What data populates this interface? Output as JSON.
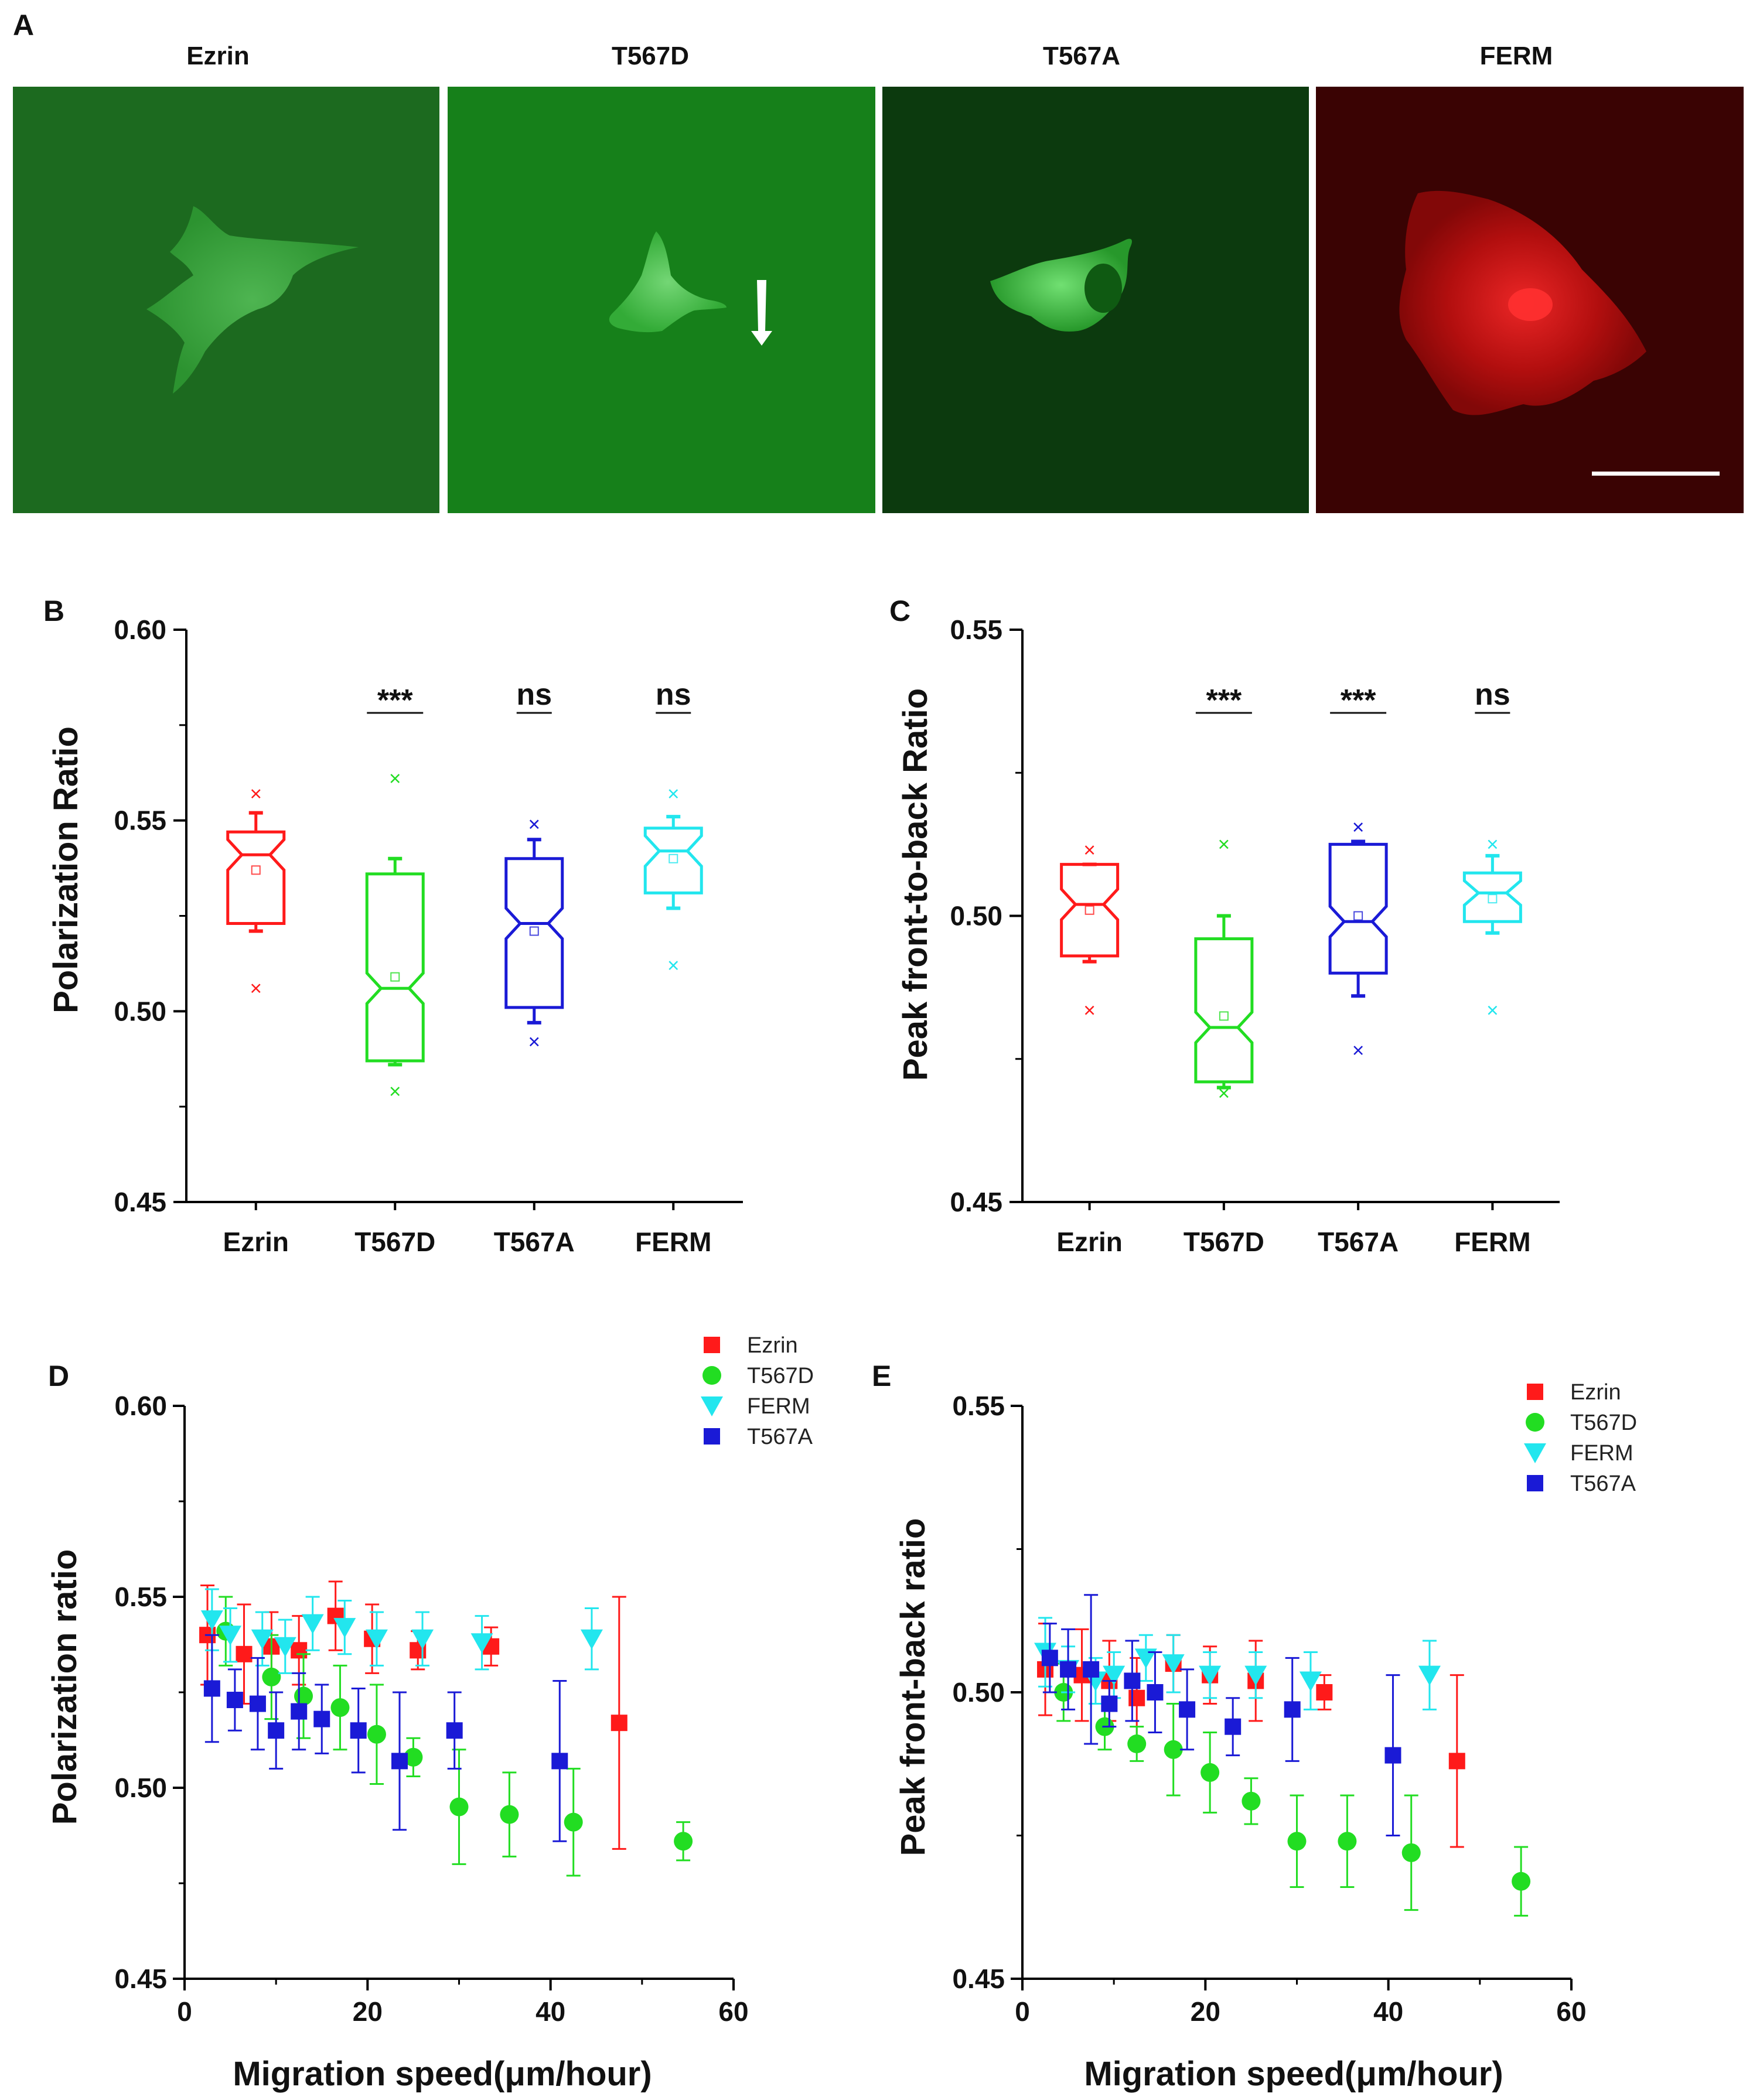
{
  "panel_a": {
    "letter": "A",
    "images": [
      {
        "title": "Ezrin",
        "tint": "#1c6a1f"
      },
      {
        "title": "T567D",
        "tint": "#16801a"
      },
      {
        "title": "T567A",
        "tint": "#0c3a0e"
      },
      {
        "title": "FERM",
        "tint": "#3a0303"
      }
    ]
  },
  "colors": {
    "Ezrin": "#ff1a1a",
    "T567D": "#22dd22",
    "T567A": "#1a1ad6",
    "FERM": "#22e6ee"
  },
  "chart_data": [
    {
      "panel": "B",
      "type": "box",
      "ylabel": "Polarization Ratio",
      "ylim": [
        0.45,
        0.6
      ],
      "yticks": [
        0.45,
        0.5,
        0.55,
        0.6
      ],
      "ytick_labels": [
        "0.45",
        "0.50",
        "0.55",
        "0.60"
      ],
      "categories": [
        "Ezrin",
        "T567D",
        "T567A",
        "FERM"
      ],
      "significance": [
        "",
        "***",
        "ns",
        "ns"
      ],
      "boxes": [
        {
          "q1": 0.523,
          "median": 0.541,
          "q3": 0.547,
          "whisker_low": 0.521,
          "whisker_high": 0.552,
          "mean": 0.537,
          "outliers": [
            0.557,
            0.506
          ]
        },
        {
          "q1": 0.487,
          "median": 0.506,
          "q3": 0.536,
          "whisker_low": 0.486,
          "whisker_high": 0.54,
          "mean": 0.509,
          "outliers": [
            0.561,
            0.479
          ]
        },
        {
          "q1": 0.501,
          "median": 0.523,
          "q3": 0.54,
          "whisker_low": 0.497,
          "whisker_high": 0.545,
          "mean": 0.521,
          "outliers": [
            0.549,
            0.492
          ]
        },
        {
          "q1": 0.531,
          "median": 0.542,
          "q3": 0.548,
          "whisker_low": 0.527,
          "whisker_high": 0.551,
          "mean": 0.54,
          "outliers": [
            0.557,
            0.512
          ]
        }
      ]
    },
    {
      "panel": "C",
      "type": "box",
      "ylabel": "Peak front-to-back Ratio",
      "ylim": [
        0.45,
        0.55
      ],
      "yticks": [
        0.45,
        0.5,
        0.55
      ],
      "ytick_labels": [
        "0.45",
        "0.50",
        "0.55"
      ],
      "categories": [
        "Ezrin",
        "T567D",
        "T567A",
        "FERM"
      ],
      "significance": [
        "",
        "***",
        "***",
        "ns"
      ],
      "boxes": [
        {
          "q1": 0.493,
          "median": 0.502,
          "q3": 0.509,
          "whisker_low": 0.492,
          "whisker_high": 0.509,
          "mean": 0.501,
          "outliers": [
            0.5115,
            0.4835
          ]
        },
        {
          "q1": 0.471,
          "median": 0.4805,
          "q3": 0.496,
          "whisker_low": 0.47,
          "whisker_high": 0.5,
          "mean": 0.4825,
          "outliers": [
            0.5125,
            0.469
          ]
        },
        {
          "q1": 0.49,
          "median": 0.499,
          "q3": 0.5125,
          "whisker_low": 0.486,
          "whisker_high": 0.513,
          "mean": 0.5,
          "outliers": [
            0.5155,
            0.4765
          ]
        },
        {
          "q1": 0.499,
          "median": 0.504,
          "q3": 0.5075,
          "whisker_low": 0.497,
          "whisker_high": 0.5105,
          "mean": 0.503,
          "outliers": [
            0.5125,
            0.4835
          ]
        }
      ]
    },
    {
      "panel": "D",
      "type": "scatter",
      "xlabel": "Migration speed(μm/hour)",
      "ylabel": "Polarization ratio",
      "xlim": [
        0,
        60
      ],
      "ylim": [
        0.45,
        0.6
      ],
      "xticks": [
        0,
        20,
        40,
        60
      ],
      "xtick_labels": [
        "0",
        "20",
        "40",
        "60"
      ],
      "yticks": [
        0.45,
        0.5,
        0.55,
        0.6
      ],
      "ytick_labels": [
        "0.45",
        "0.50",
        "0.55",
        "0.60"
      ],
      "legend": [
        "Ezrin",
        "T567D",
        "FERM",
        "T567A"
      ],
      "series": [
        {
          "name": "Ezrin",
          "marker": "square",
          "points": [
            [
              2.5,
              0.54,
              0.013
            ],
            [
              6.5,
              0.535,
              0.013
            ],
            [
              9.5,
              0.537,
              0.009
            ],
            [
              12.5,
              0.536,
              0.009
            ],
            [
              16.5,
              0.545,
              0.009
            ],
            [
              20.5,
              0.539,
              0.009
            ],
            [
              25.5,
              0.536,
              0.005
            ],
            [
              33.5,
              0.537,
              0.005
            ],
            [
              47.5,
              0.517,
              0.033
            ]
          ]
        },
        {
          "name": "T567D",
          "marker": "circle",
          "points": [
            [
              4.5,
              0.541,
              0.009
            ],
            [
              9.5,
              0.529,
              0.011
            ],
            [
              13,
              0.524,
              0.011
            ],
            [
              17,
              0.521,
              0.011
            ],
            [
              21,
              0.514,
              0.013
            ],
            [
              25,
              0.508,
              0.005
            ],
            [
              30,
              0.495,
              0.015
            ],
            [
              35.5,
              0.493,
              0.011
            ],
            [
              42.5,
              0.491,
              0.014
            ],
            [
              54.5,
              0.486,
              0.005
            ]
          ]
        },
        {
          "name": "FERM",
          "marker": "triangle",
          "points": [
            [
              3,
              0.544,
              0.008
            ],
            [
              5,
              0.54,
              0.007
            ],
            [
              8.5,
              0.539,
              0.007
            ],
            [
              11,
              0.537,
              0.007
            ],
            [
              14,
              0.543,
              0.007
            ],
            [
              17.5,
              0.542,
              0.007
            ],
            [
              21,
              0.539,
              0.007
            ],
            [
              26,
              0.539,
              0.007
            ],
            [
              32.5,
              0.538,
              0.007
            ],
            [
              44.5,
              0.539,
              0.008
            ]
          ]
        },
        {
          "name": "T567A",
          "marker": "square",
          "points": [
            [
              3,
              0.526,
              0.014
            ],
            [
              5.5,
              0.523,
              0.008
            ],
            [
              8,
              0.522,
              0.012
            ],
            [
              10,
              0.515,
              0.01
            ],
            [
              12.5,
              0.52,
              0.01
            ],
            [
              15,
              0.518,
              0.009
            ],
            [
              19,
              0.515,
              0.011
            ],
            [
              23.5,
              0.507,
              0.018
            ],
            [
              29.5,
              0.515,
              0.01
            ],
            [
              41,
              0.507,
              0.021
            ]
          ]
        }
      ]
    },
    {
      "panel": "E",
      "type": "scatter",
      "xlabel": "Migration speed(μm/hour)",
      "ylabel": "Peak front-back ratio",
      "xlim": [
        0,
        60
      ],
      "ylim": [
        0.45,
        0.55
      ],
      "xticks": [
        0,
        20,
        40,
        60
      ],
      "xtick_labels": [
        "0",
        "20",
        "40",
        "60"
      ],
      "yticks": [
        0.45,
        0.5,
        0.55
      ],
      "ytick_labels": [
        "0.45",
        "0.50",
        "0.55"
      ],
      "legend": [
        "Ezrin",
        "T567D",
        "FERM",
        "T567A"
      ],
      "series": [
        {
          "name": "Ezrin",
          "marker": "square",
          "points": [
            [
              2.5,
              0.504,
              0.008
            ],
            [
              6.5,
              0.503,
              0.008
            ],
            [
              9.5,
              0.502,
              0.007
            ],
            [
              12.5,
              0.499,
              0.007
            ],
            [
              16.5,
              0.505,
              0.005
            ],
            [
              20.5,
              0.503,
              0.005
            ],
            [
              25.5,
              0.502,
              0.007
            ],
            [
              33,
              0.5,
              0.003
            ],
            [
              47.5,
              0.488,
              0.015
            ]
          ]
        },
        {
          "name": "T567D",
          "marker": "circle",
          "points": [
            [
              4.5,
              0.5,
              0.005
            ],
            [
              9,
              0.494,
              0.004
            ],
            [
              12.5,
              0.491,
              0.003
            ],
            [
              16.5,
              0.49,
              0.008
            ],
            [
              20.5,
              0.486,
              0.007
            ],
            [
              25,
              0.481,
              0.004
            ],
            [
              30,
              0.474,
              0.008
            ],
            [
              35.5,
              0.474,
              0.008
            ],
            [
              42.5,
              0.472,
              0.01
            ],
            [
              54.5,
              0.467,
              0.006
            ]
          ]
        },
        {
          "name": "FERM",
          "marker": "triangle",
          "points": [
            [
              2.5,
              0.507,
              0.006
            ],
            [
              5,
              0.504,
              0.004
            ],
            [
              8,
              0.502,
              0.004
            ],
            [
              10,
              0.503,
              0.004
            ],
            [
              13.5,
              0.506,
              0.004
            ],
            [
              16.5,
              0.505,
              0.005
            ],
            [
              20.5,
              0.503,
              0.004
            ],
            [
              25.5,
              0.503,
              0.004
            ],
            [
              31.5,
              0.502,
              0.005
            ],
            [
              44.5,
              0.503,
              0.006
            ]
          ]
        },
        {
          "name": "T567A",
          "marker": "square",
          "points": [
            [
              3,
              0.506,
              0.006
            ],
            [
              5,
              0.504,
              0.007
            ],
            [
              7.5,
              0.504,
              0.013
            ],
            [
              9.5,
              0.498,
              0.004
            ],
            [
              12,
              0.502,
              0.007
            ],
            [
              14.5,
              0.5,
              0.007
            ],
            [
              18,
              0.497,
              0.007
            ],
            [
              23,
              0.494,
              0.005
            ],
            [
              29.5,
              0.497,
              0.009
            ],
            [
              40.5,
              0.489,
              0.014
            ]
          ]
        }
      ]
    }
  ]
}
